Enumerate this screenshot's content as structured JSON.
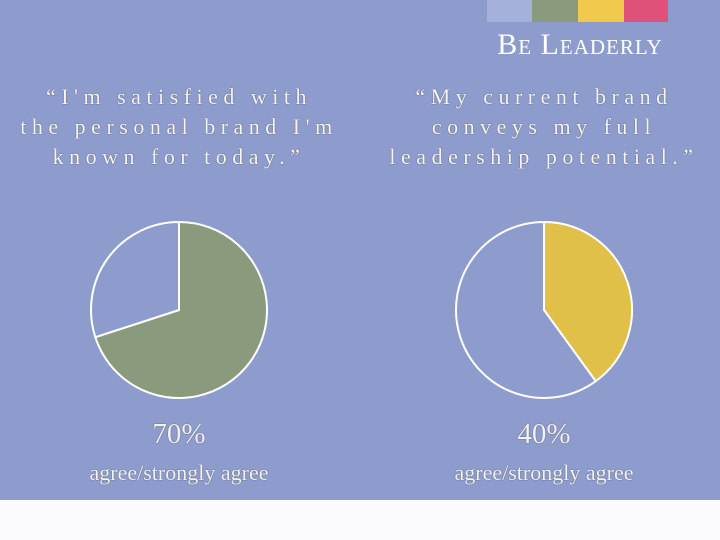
{
  "brand": "Be Leaderly",
  "chart_data": [
    {
      "type": "pie",
      "title": "“I'm satisfied with the personal brand I'm known for today.”",
      "values": [
        70,
        30
      ],
      "value_labels": [
        "70%",
        null
      ],
      "colors": [
        "#8a9a7d",
        "#8e9ccd"
      ],
      "caption": "agree/strongly agree"
    },
    {
      "type": "pie",
      "title": "“My current brand conveys my full leadership potential.”",
      "values": [
        40,
        60
      ],
      "value_labels": [
        "40%",
        null
      ],
      "colors": [
        "#e1c04a",
        "#8e9ccd"
      ],
      "caption": "agree/strongly agree"
    }
  ]
}
